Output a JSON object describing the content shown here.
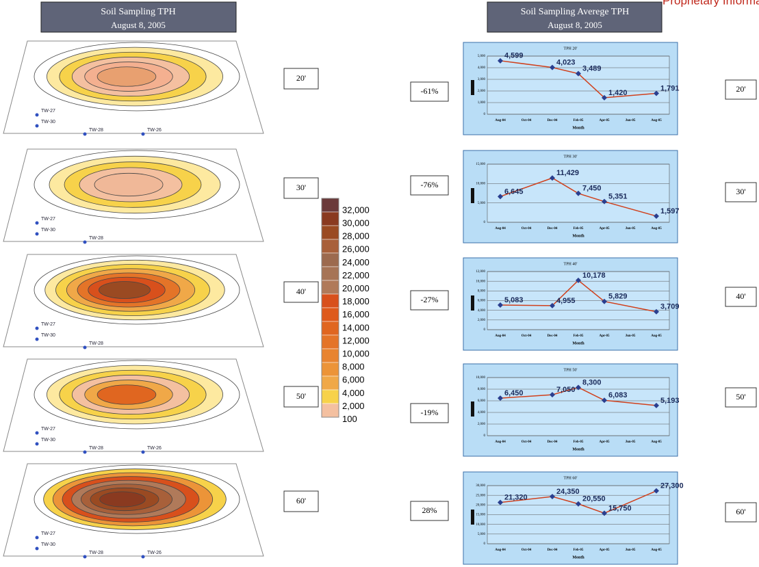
{
  "header": {
    "left_title": "Soil Sampling TPH",
    "left_date": "August 8, 2005",
    "right_title": "Soil Sampling Averege TPH",
    "right_date": "August 8, 2005",
    "corner": "Proprietary Information"
  },
  "maps": [
    {
      "depth": "20'",
      "wells": [
        "TW-27",
        "TW-30",
        "TW-28",
        "TW-26"
      ]
    },
    {
      "depth": "30'",
      "wells": [
        "TW-27",
        "TW-30",
        "TW-28"
      ]
    },
    {
      "depth": "40'",
      "wells": [
        "TW-27",
        "TW-30",
        "TW-28"
      ]
    },
    {
      "depth": "50'",
      "wells": [
        "TW-27",
        "TW-30",
        "TW-28",
        "TW-26"
      ]
    },
    {
      "depth": "60'",
      "wells": [
        "TW-27",
        "TW-30",
        "TW-28",
        "TW-26"
      ]
    }
  ],
  "legend": {
    "levels": [
      "32,000",
      "30,000",
      "28,000",
      "26,000",
      "24,000",
      "22,000",
      "20,000",
      "18,000",
      "16,000",
      "14,000",
      "12,000",
      "10,000",
      "8,000",
      "6,000",
      "4,000",
      "2,000",
      "100"
    ],
    "colors": [
      "#6b3a3a",
      "#8a3a20",
      "#9a4a22",
      "#a8603a",
      "#9c6a4e",
      "#a67456",
      "#b07a5a",
      "#d8501c",
      "#de5a1c",
      "#e06620",
      "#e47428",
      "#e88430",
      "#ec9438",
      "#f0a848",
      "#f7d24a",
      "#f4c0a0"
    ]
  },
  "changes": [
    "-61%",
    "-76%",
    "-27%",
    "-19%",
    "28%"
  ],
  "chart_data": [
    {
      "type": "line",
      "title": "TPH 20'",
      "x_label": "Month",
      "xticks": [
        "Aug-04",
        "Oct-04",
        "Dec-04",
        "Feb-05",
        "Apr-05",
        "Jun-05",
        "Aug-05"
      ],
      "x": [
        "Aug-04",
        "Dec-04",
        "Feb-05",
        "Apr-05",
        "Aug-05"
      ],
      "values": [
        4599,
        4023,
        3489,
        1420,
        1791
      ],
      "value_labels": [
        "4,599",
        "4,023",
        "3,489",
        "1,420",
        "1,791"
      ],
      "ylim": [
        0,
        5000
      ],
      "yticks": [
        0,
        {
          "value": 1000,
          "label": "1,000"
        },
        {
          "value": 2000,
          "label": "2,000"
        },
        {
          "value": 3000,
          "label": "3,000"
        },
        {
          "value": 4000,
          "label": "4,000"
        },
        {
          "value": 5000,
          "label": "5,000"
        }
      ],
      "grid": true,
      "line_color": "#d0401c",
      "marker_color": "#2a3f8f"
    },
    {
      "type": "line",
      "title": "TPH 30'",
      "x_label": "Month",
      "xticks": [
        "Aug-04",
        "Oct-04",
        "Dec-04",
        "Feb-05",
        "Apr-05",
        "Jun-05",
        "Aug-05"
      ],
      "x": [
        "Aug-04",
        "Dec-04",
        "Feb-05",
        "Apr-05",
        "Aug-05"
      ],
      "values": [
        6645,
        11429,
        7450,
        5351,
        1597
      ],
      "value_labels": [
        "6,645",
        "11,429",
        "7,450",
        "5,351",
        "1,597"
      ],
      "ylim": [
        0,
        15000
      ],
      "yticks": [
        0,
        {
          "value": 5000,
          "label": "5,000"
        },
        {
          "value": 10000,
          "label": "10,000"
        },
        {
          "value": 15000,
          "label": "15,000"
        }
      ],
      "grid": true,
      "line_color": "#d0401c",
      "marker_color": "#2a3f8f"
    },
    {
      "type": "line",
      "title": "TPH 40'",
      "x_label": "Month",
      "xticks": [
        "Aug-04",
        "Oct-04",
        "Dec-04",
        "Feb-05",
        "Apr-05",
        "Jun-05",
        "Aug-05"
      ],
      "x": [
        "Aug-04",
        "Dec-04",
        "Feb-05",
        "Apr-05",
        "Aug-05"
      ],
      "values": [
        5083,
        4955,
        10178,
        5829,
        3709
      ],
      "value_labels": [
        "5,083",
        "4,955",
        "10,178",
        "5,829",
        "3,709"
      ],
      "ylim": [
        0,
        12000
      ],
      "yticks": [
        0,
        {
          "value": 2000,
          "label": "2,000"
        },
        {
          "value": 4000,
          "label": "4,000"
        },
        {
          "value": 6000,
          "label": "6,000"
        },
        {
          "value": 8000,
          "label": "8,000"
        },
        {
          "value": 10000,
          "label": "10,000"
        },
        {
          "value": 12000,
          "label": "12,000"
        }
      ],
      "grid": true,
      "line_color": "#d0401c",
      "marker_color": "#2a3f8f"
    },
    {
      "type": "line",
      "title": "TPH 50'",
      "x_label": "Month",
      "xticks": [
        "Aug-04",
        "Oct-04",
        "Dec-04",
        "Feb-05",
        "Apr-05",
        "Jun-05",
        "Aug-05"
      ],
      "x": [
        "Aug-04",
        "Dec-04",
        "Feb-05",
        "Apr-05",
        "Aug-05"
      ],
      "values": [
        6450,
        7050,
        8300,
        6083,
        5193
      ],
      "value_labels": [
        "6,450",
        "7,050",
        "8,300",
        "6,083",
        "5,193"
      ],
      "ylim": [
        0,
        10000
      ],
      "yticks": [
        0,
        {
          "value": 2000,
          "label": "2,000"
        },
        {
          "value": 4000,
          "label": "4,000"
        },
        {
          "value": 6000,
          "label": "6,000"
        },
        {
          "value": 8000,
          "label": "8,000"
        },
        {
          "value": 10000,
          "label": "10,000"
        }
      ],
      "grid": true,
      "line_color": "#d0401c",
      "marker_color": "#2a3f8f"
    },
    {
      "type": "line",
      "title": "TPH 60'",
      "x_label": "Month",
      "xticks": [
        "Aug-04",
        "Oct-04",
        "Dec-04",
        "Feb-05",
        "Apr-05",
        "Jun-05",
        "Aug-05"
      ],
      "x": [
        "Aug-04",
        "Dec-04",
        "Feb-05",
        "Apr-05",
        "Aug-05"
      ],
      "values": [
        21320,
        24350,
        20550,
        15750,
        27300
      ],
      "value_labels": [
        "21,320",
        "24,350",
        "20,550",
        "15,750",
        "27,300"
      ],
      "ylim": [
        0,
        30000
      ],
      "yticks": [
        0,
        {
          "value": 5000,
          "label": "5,000"
        },
        {
          "value": 10000,
          "label": "10,000"
        },
        {
          "value": 15000,
          "label": "15,000"
        },
        {
          "value": 20000,
          "label": "20,000"
        },
        {
          "value": 25000,
          "label": "25,000"
        },
        {
          "value": 30000,
          "label": "30,000"
        }
      ],
      "grid": true,
      "line_color": "#d0401c",
      "marker_color": "#2a3f8f"
    }
  ]
}
